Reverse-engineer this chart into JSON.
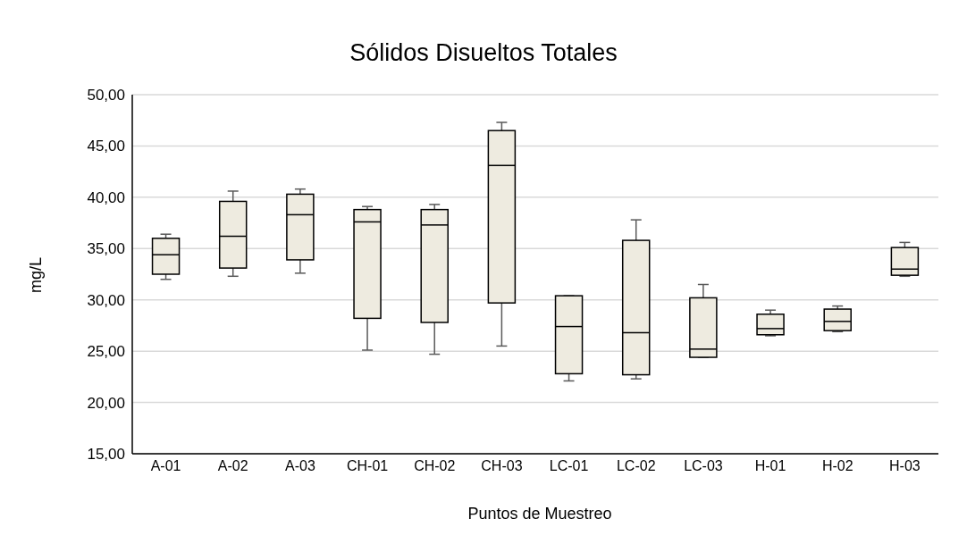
{
  "chart_data": {
    "type": "box",
    "title": "Sólidos Disueltos Totales",
    "xlabel": "Puntos de Muestreo",
    "ylabel": "mg/L",
    "categories": [
      "A-01",
      "A-02",
      "A-03",
      "CH-01",
      "CH-02",
      "CH-03",
      "LC-01",
      "LC-02",
      "LC-03",
      "H-01",
      "H-02",
      "H-03"
    ],
    "color": "#eeebe0",
    "boxes": [
      {
        "low": 32.0,
        "q1": 32.5,
        "median": 34.4,
        "q3": 36.0,
        "high": 36.4
      },
      {
        "low": 32.3,
        "q1": 33.1,
        "median": 36.2,
        "q3": 39.6,
        "high": 40.6
      },
      {
        "low": 32.6,
        "q1": 33.9,
        "median": 38.3,
        "q3": 40.3,
        "high": 40.8
      },
      {
        "low": 25.1,
        "q1": 28.2,
        "median": 37.6,
        "q3": 38.8,
        "high": 39.1
      },
      {
        "low": 24.7,
        "q1": 27.8,
        "median": 37.3,
        "q3": 38.8,
        "high": 39.3
      },
      {
        "low": 25.5,
        "q1": 29.7,
        "median": 43.1,
        "q3": 46.5,
        "high": 47.3
      },
      {
        "low": 22.1,
        "q1": 22.8,
        "median": 27.4,
        "q3": 30.4,
        "high": 30.4
      },
      {
        "low": 22.3,
        "q1": 22.7,
        "median": 26.8,
        "q3": 35.8,
        "high": 37.8
      },
      {
        "low": 24.4,
        "q1": 24.4,
        "median": 25.2,
        "q3": 30.2,
        "high": 31.5
      },
      {
        "low": 26.5,
        "q1": 26.6,
        "median": 27.2,
        "q3": 28.6,
        "high": 29.0
      },
      {
        "low": 26.9,
        "q1": 27.0,
        "median": 27.9,
        "q3": 29.1,
        "high": 29.4
      },
      {
        "low": 32.3,
        "q1": 32.4,
        "median": 33.0,
        "q3": 35.1,
        "high": 35.6
      }
    ],
    "ylim": [
      15,
      50
    ],
    "yticks": [
      {
        "value": 15,
        "label": "15,00"
      },
      {
        "value": 20,
        "label": "20,00"
      },
      {
        "value": 25,
        "label": "25,00"
      },
      {
        "value": 30,
        "label": "30,00"
      },
      {
        "value": 35,
        "label": "35,00"
      },
      {
        "value": 40,
        "label": "40,00"
      },
      {
        "value": 45,
        "label": "45,00"
      },
      {
        "value": 50,
        "label": "50,00"
      }
    ],
    "grid": "y",
    "legend": false
  }
}
